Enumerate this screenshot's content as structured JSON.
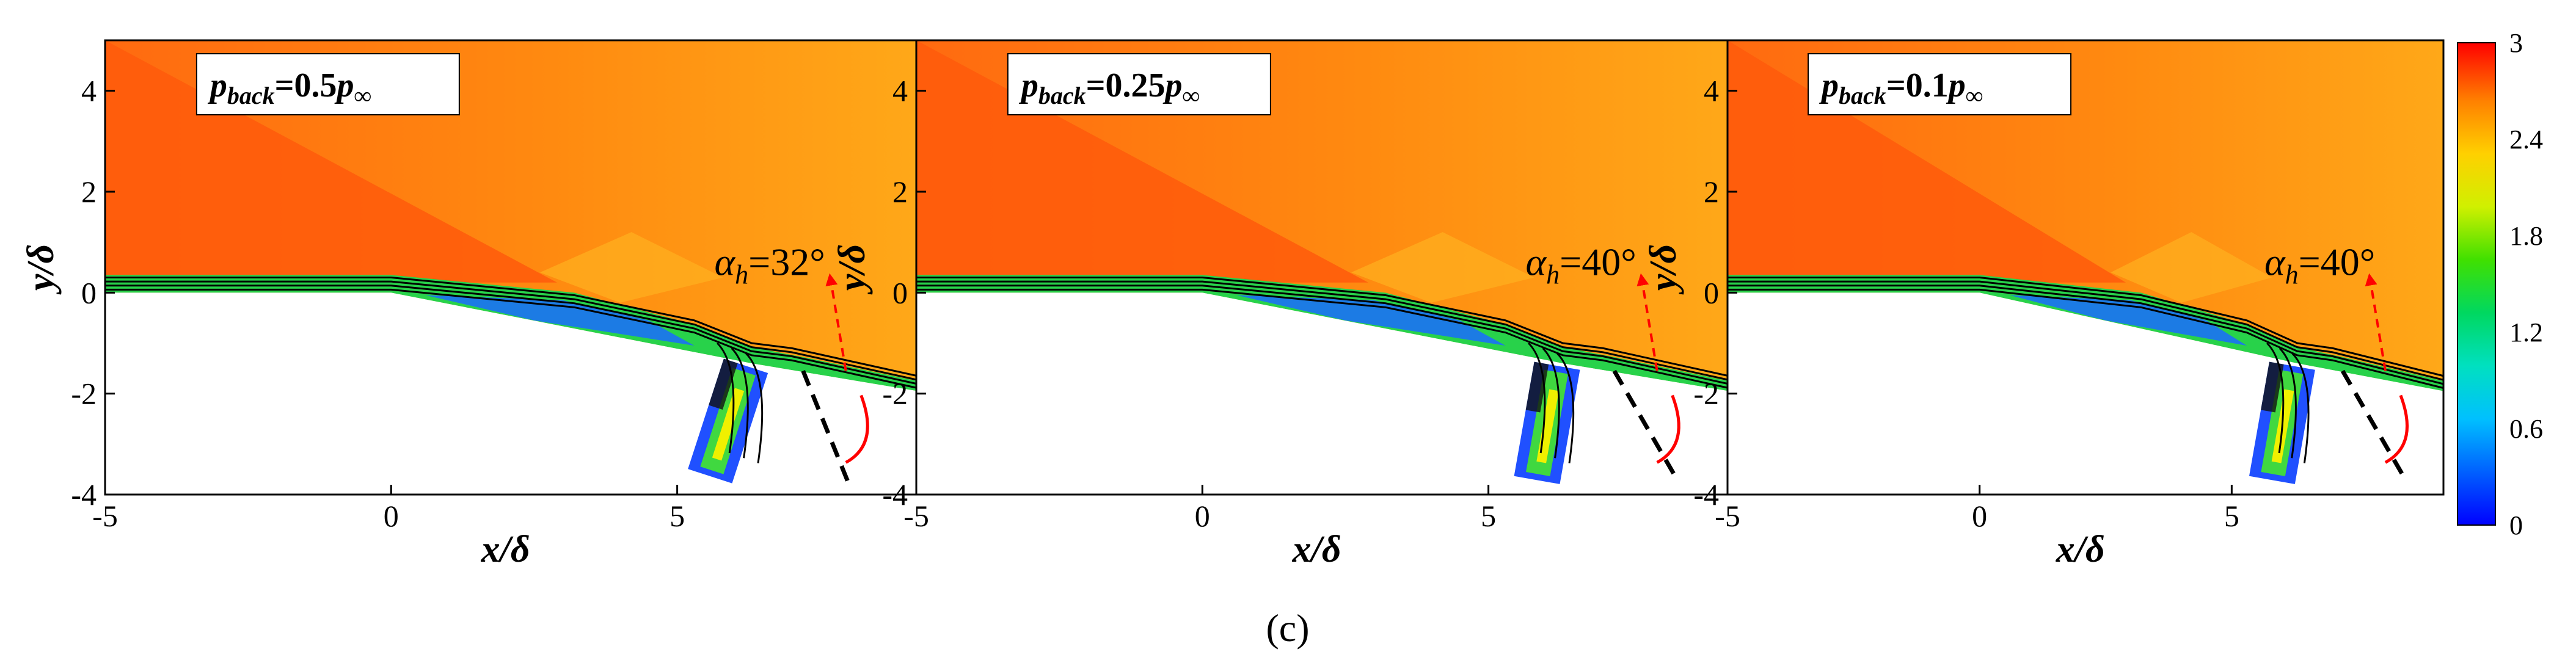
{
  "figure": {
    "caption": "(c)"
  },
  "colorbar": {
    "ticks": [
      "3",
      "2.4",
      "1.8",
      "1.2",
      "0.6",
      "0"
    ],
    "range": [
      0,
      3
    ],
    "colors": [
      "#0000ff",
      "#00a0ff",
      "#00e0e0",
      "#00d860",
      "#30e000",
      "#c8f000",
      "#ffe000",
      "#ffa000",
      "#ff5000",
      "#ff0000"
    ]
  },
  "chart_data": [
    {
      "type": "heatmap",
      "title": "pback=0.5p∞",
      "title_parts": {
        "main": "p",
        "sub": "back",
        "eq": "=0.5",
        "main2": "p",
        "sub2": "∞"
      },
      "xlabel": "x/δ",
      "ylabel": "y/δ",
      "xlim": [
        -5,
        9.2
      ],
      "ylim": [
        -4,
        5
      ],
      "xticks": [
        "-5",
        "0",
        "5"
      ],
      "yticks": [
        "4",
        "2",
        "0",
        "-2",
        "-4"
      ],
      "annotation": {
        "symbol": "α",
        "sub": "h",
        "value": "=32°"
      }
    },
    {
      "type": "heatmap",
      "title": "pback=0.25p∞",
      "title_parts": {
        "main": "p",
        "sub": "back",
        "eq": "=0.25",
        "main2": "p",
        "sub2": "∞"
      },
      "xlabel": "x/δ",
      "ylabel": "y/δ",
      "xlim": [
        -5,
        9.2
      ],
      "ylim": [
        -4,
        5
      ],
      "xticks": [
        "-5",
        "0",
        "5"
      ],
      "yticks": [
        "4",
        "2",
        "0",
        "-2",
        "-4"
      ],
      "annotation": {
        "symbol": "α",
        "sub": "h",
        "value": "=40°"
      }
    },
    {
      "type": "heatmap",
      "title": "pback=0.1p∞",
      "title_parts": {
        "main": "p",
        "sub": "back",
        "eq": "=0.1",
        "main2": "p",
        "sub2": "∞"
      },
      "xlabel": "x/δ",
      "ylabel": "y/δ",
      "xlim": [
        -5,
        9.2
      ],
      "ylim": [
        -4,
        5
      ],
      "xticks": [
        "-5",
        "0",
        "5"
      ],
      "yticks": [
        "4",
        "2",
        "0",
        "-2",
        "-4"
      ],
      "annotation": {
        "symbol": "α",
        "sub": "h",
        "value": "=40°"
      }
    }
  ]
}
